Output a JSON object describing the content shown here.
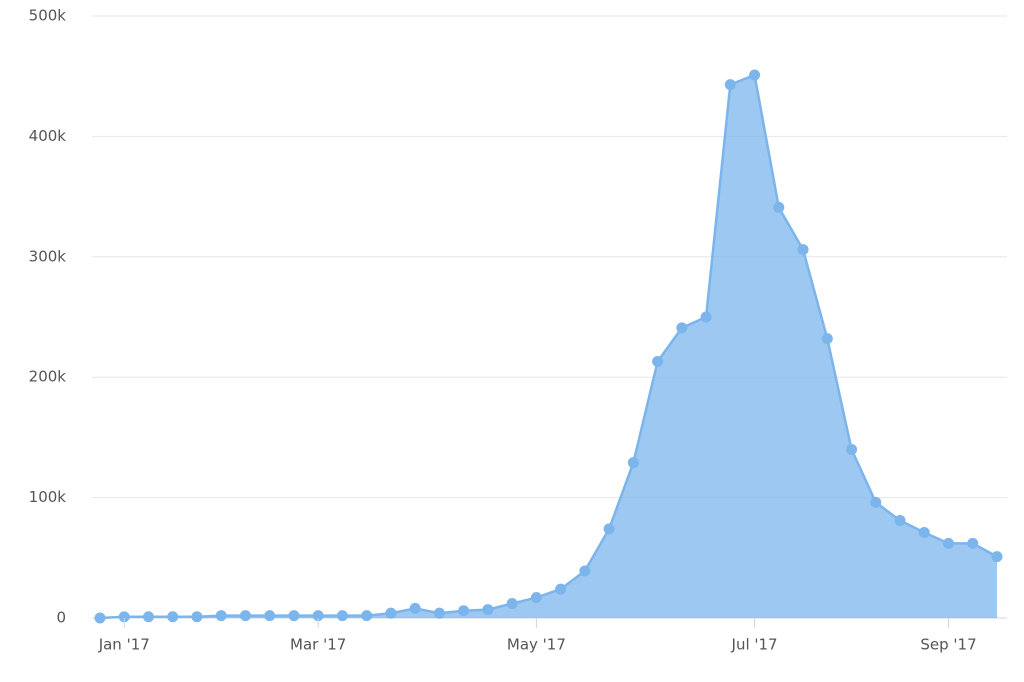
{
  "chart_data": {
    "type": "area",
    "categories": [
      null,
      "Jan '17",
      null,
      null,
      null,
      null,
      null,
      null,
      null,
      "Mar '17",
      null,
      null,
      null,
      null,
      null,
      null,
      null,
      null,
      "May '17",
      null,
      null,
      null,
      null,
      null,
      null,
      null,
      null,
      "Jul '17",
      null,
      null,
      null,
      null,
      null,
      null,
      null,
      "Sep '17",
      null,
      null
    ],
    "series": [
      {
        "color": "#7cb5ec",
        "values": [
          0,
          1000,
          1000,
          1000,
          1000,
          2000,
          2000,
          2000,
          2000,
          2000,
          2000,
          2000,
          4000,
          8000,
          4000,
          6000,
          7000,
          12000,
          17000,
          24000,
          39000,
          74000,
          129000,
          213000,
          241000,
          250000,
          443000,
          451000,
          341000,
          306000,
          232000,
          140000,
          96000,
          81000,
          71000,
          62000,
          62000,
          51000
        ]
      }
    ],
    "ylim": [
      0,
      500000
    ],
    "yticks": [
      0,
      {
        "value": 100000,
        "label": "100k"
      },
      {
        "value": 200000,
        "label": "200k"
      },
      {
        "value": 300000,
        "label": "300k"
      },
      {
        "value": 400000,
        "label": "400k"
      },
      {
        "value": 500000,
        "label": "500k"
      }
    ],
    "grid": true
  }
}
